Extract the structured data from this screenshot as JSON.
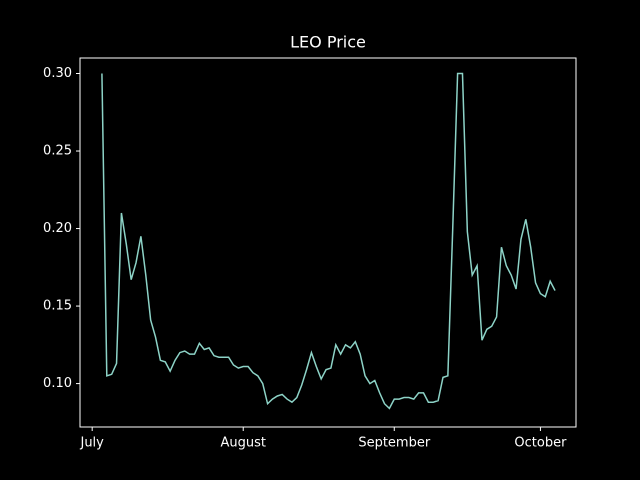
{
  "chart_data": {
    "type": "line",
    "title": "LEO Price",
    "x": [
      2,
      3,
      4,
      5,
      6,
      7,
      8,
      9,
      10,
      11,
      12,
      13,
      14,
      15,
      16,
      17,
      18,
      19,
      20,
      21,
      22,
      23,
      24,
      25,
      26,
      27,
      28,
      29,
      30,
      31,
      32,
      33,
      34,
      35,
      36,
      37,
      38,
      39,
      40,
      41,
      42,
      43,
      44,
      45,
      46,
      47,
      48,
      49,
      50,
      51,
      52,
      53,
      54,
      55,
      56,
      57,
      58,
      59,
      60,
      61,
      62,
      63,
      64,
      65,
      66,
      67,
      68,
      69,
      70,
      71,
      72,
      73,
      74,
      75,
      76,
      77,
      78,
      79,
      80,
      81,
      82,
      83,
      84,
      85,
      86,
      87,
      88,
      89,
      90,
      91,
      92,
      93,
      94,
      95
    ],
    "series": [
      {
        "name": "LEO",
        "color": "#8dd3c7",
        "values": [
          0.3,
          0.105,
          0.106,
          0.113,
          0.21,
          0.19,
          0.167,
          0.178,
          0.195,
          0.17,
          0.141,
          0.13,
          0.115,
          0.114,
          0.108,
          0.115,
          0.12,
          0.121,
          0.119,
          0.119,
          0.126,
          0.122,
          0.123,
          0.118,
          0.117,
          0.117,
          0.117,
          0.112,
          0.11,
          0.111,
          0.111,
          0.107,
          0.105,
          0.1,
          0.087,
          0.09,
          0.092,
          0.093,
          0.09,
          0.088,
          0.091,
          0.099,
          0.109,
          0.12,
          0.111,
          0.103,
          0.109,
          0.11,
          0.125,
          0.119,
          0.125,
          0.123,
          0.127,
          0.119,
          0.105,
          0.1,
          0.102,
          0.094,
          0.087,
          0.084,
          0.09,
          0.09,
          0.091,
          0.091,
          0.09,
          0.094,
          0.094,
          0.088,
          0.088,
          0.089,
          0.104,
          0.105,
          0.2,
          0.3,
          0.3,
          0.198,
          0.17,
          0.176,
          0.128,
          0.135,
          0.137,
          0.143,
          0.188,
          0.176,
          0.17,
          0.161,
          0.193,
          0.206,
          0.188,
          0.165,
          0.158,
          0.156,
          0.166,
          0.16
        ]
      }
    ],
    "xlim": [
      -2.5,
      99.3
    ],
    "xticks": [
      {
        "value": 0,
        "label": "July"
      },
      {
        "value": 31,
        "label": "August"
      },
      {
        "value": 62,
        "label": "September"
      },
      {
        "value": 92,
        "label": "October"
      }
    ],
    "ylim": [
      0.072,
      0.31
    ],
    "yticks": [
      {
        "value": 0.1,
        "label": "0.10"
      },
      {
        "value": 0.15,
        "label": "0.15"
      },
      {
        "value": 0.2,
        "label": "0.20"
      },
      {
        "value": 0.25,
        "label": "0.25"
      },
      {
        "value": 0.3,
        "label": "0.30"
      }
    ],
    "grid": false
  }
}
